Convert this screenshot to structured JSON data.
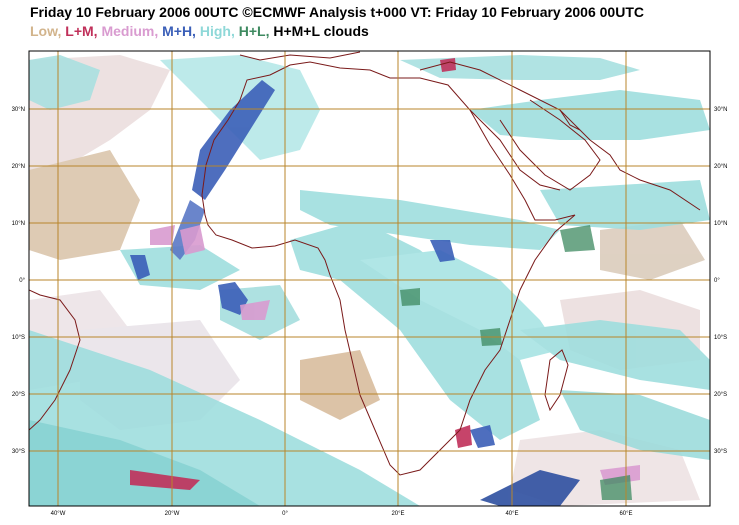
{
  "title": "Friday 10 February 2006 00UTC ©ECMWF Analysis t+000 VT: Friday 10 February 2006 00UTC",
  "legend": [
    {
      "label": "Low,",
      "color": "#d2b48c"
    },
    {
      "label": "L+M,",
      "color": "#c0305a"
    },
    {
      "label": "Medium,",
      "color": "#d99bd0"
    },
    {
      "label": "M+H,",
      "color": "#3b5fb8"
    },
    {
      "label": "High,",
      "color": "#8fd8d8"
    },
    {
      "label": "H+L,",
      "color": "#3e8a60"
    },
    {
      "label": "H+M+L clouds",
      "color": "#000000"
    }
  ],
  "lon_labels": [
    "40°W",
    "20°W",
    "0°",
    "20°E",
    "40°E",
    "60°E"
  ],
  "lat_labels_left": [
    "30°N",
    "20°N",
    "10°N",
    "0°",
    "10°S",
    "20°S",
    "30°S"
  ],
  "lat_labels_right": [
    "30°N",
    "20°N",
    "10°N",
    "0°",
    "10°S",
    "20°S",
    "30°S"
  ],
  "colors": {
    "grid": "#b8862b",
    "coast": "#7a1a1a",
    "frame": "#000000"
  }
}
